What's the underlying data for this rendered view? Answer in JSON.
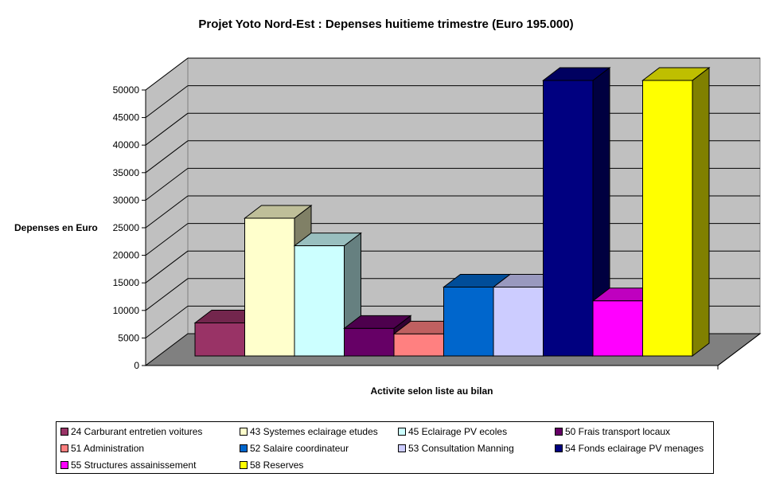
{
  "chart_data": {
    "type": "bar",
    "title": "Projet Yoto Nord-Est : Depenses huitieme trimestre (Euro 195.000)",
    "xlabel": "Activite selon liste au bilan",
    "ylabel": "Depenses en Euro",
    "ylim": [
      0,
      50000
    ],
    "yticks": [
      "0",
      "5000",
      "10000",
      "15000",
      "20000",
      "25000",
      "30000",
      "35000",
      "40000",
      "45000",
      "50000"
    ],
    "grid": true,
    "legend_position": "bottom",
    "series": [
      {
        "name": "24 Carburant entretien voitures",
        "value": 6000,
        "color": "#993366"
      },
      {
        "name": "43 Systemes eclairage etudes",
        "value": 25000,
        "color": "#FFFFCC"
      },
      {
        "name": "45 Eclairage PV ecoles",
        "value": 20000,
        "color": "#CCFFFF"
      },
      {
        "name": "50 Frais transport locaux",
        "value": 5000,
        "color": "#660066"
      },
      {
        "name": "51 Administration",
        "value": 4000,
        "color": "#FF8080"
      },
      {
        "name": "52 Salaire coordinateur",
        "value": 12500,
        "color": "#0066CC"
      },
      {
        "name": "53 Consultation Manning",
        "value": 12500,
        "color": "#CCCCFF"
      },
      {
        "name": "54 Fonds eclairage PV menages",
        "value": 50000,
        "color": "#000080"
      },
      {
        "name": "55 Structures assainissement",
        "value": 10000,
        "color": "#FF00FF"
      },
      {
        "name": "58 Reserves",
        "value": 50000,
        "color": "#FFFF00"
      }
    ]
  }
}
